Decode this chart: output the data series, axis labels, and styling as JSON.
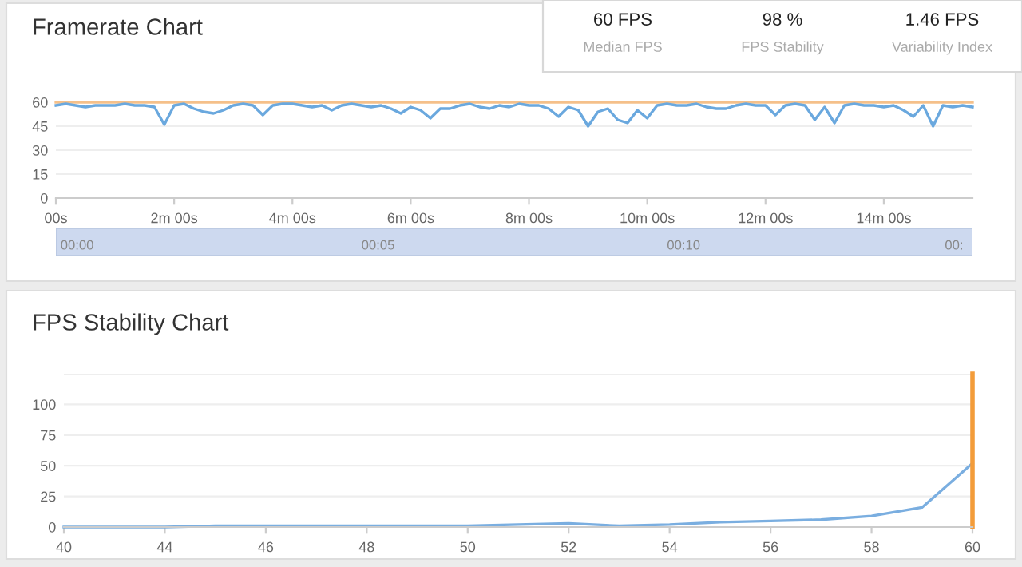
{
  "chart_data": [
    {
      "type": "line",
      "title": "Framerate Chart",
      "ylim": [
        0,
        60
      ],
      "categories": [
        "00s",
        null,
        null,
        null,
        null,
        null,
        null,
        null,
        null,
        null,
        null,
        null,
        "2m 00s",
        null,
        null,
        null,
        null,
        null,
        null,
        null,
        null,
        null,
        null,
        null,
        "4m 00s",
        null,
        null,
        null,
        null,
        null,
        null,
        null,
        null,
        null,
        null,
        null,
        "6m 00s",
        null,
        null,
        null,
        null,
        null,
        null,
        null,
        null,
        null,
        null,
        null,
        "8m 00s",
        null,
        null,
        null,
        null,
        null,
        null,
        null,
        null,
        null,
        null,
        null,
        "10m 00s",
        null,
        null,
        null,
        null,
        null,
        null,
        null,
        null,
        null,
        null,
        null,
        "12m 00s",
        null,
        null,
        null,
        null,
        null,
        null,
        null,
        null,
        null,
        null,
        null,
        "14m 00s",
        null,
        null,
        null,
        null,
        null,
        null,
        null,
        null,
        null
      ],
      "yticks": [
        0,
        15,
        30,
        45,
        60
      ],
      "grid": "y",
      "annotations": [
        "00:00",
        "00:05",
        "00:10",
        "00:"
      ],
      "series": [
        {
          "color": "#f5c08a",
          "values": [
            60,
            60,
            60,
            60,
            60,
            60,
            60,
            60,
            60,
            60,
            60,
            60,
            60,
            60,
            60,
            60,
            60,
            60,
            60,
            60,
            60,
            60,
            60,
            60,
            60,
            60,
            60,
            60,
            60,
            60,
            60,
            60,
            60,
            60,
            60,
            60,
            60,
            60,
            60,
            60,
            60,
            60,
            60,
            60,
            60,
            60,
            60,
            60,
            60,
            60,
            60,
            60,
            60,
            60,
            60,
            60,
            60,
            60,
            60,
            60,
            60,
            60,
            60,
            60,
            60,
            60,
            60,
            60,
            60,
            60,
            60,
            60,
            60,
            60,
            60,
            60,
            60,
            60,
            60,
            60,
            60,
            60,
            60,
            60,
            60,
            60,
            60,
            60,
            60,
            60,
            60,
            60,
            60,
            60
          ]
        },
        {
          "color": "#6aa8de",
          "values": [
            58,
            59,
            58,
            57,
            58,
            58,
            58,
            59,
            58,
            58,
            57,
            46,
            58,
            59,
            56,
            54,
            53,
            55,
            58,
            59,
            58,
            52,
            58,
            59,
            59,
            58,
            57,
            58,
            55,
            58,
            59,
            58,
            57,
            58,
            56,
            53,
            57,
            55,
            50,
            56,
            56,
            58,
            59,
            57,
            56,
            58,
            57,
            59,
            58,
            58,
            56,
            51,
            57,
            55,
            45,
            54,
            56,
            49,
            47,
            55,
            50,
            58,
            59,
            58,
            58,
            59,
            57,
            56,
            56,
            58,
            59,
            58,
            58,
            52,
            58,
            59,
            58,
            49,
            57,
            47,
            58,
            59,
            58,
            58,
            57,
            58,
            55,
            51,
            58,
            45,
            58,
            57,
            58,
            57
          ]
        }
      ]
    },
    {
      "type": "other",
      "categories": [
        "Median FPS",
        "FPS Stability",
        "Variability Index"
      ],
      "value_labels": [
        "60 FPS",
        "98 %",
        "1.46 FPS"
      ]
    },
    {
      "type": "line",
      "title": "FPS Stability Chart",
      "categories": [
        "40",
        null,
        "44",
        null,
        "46",
        null,
        "48",
        null,
        "50",
        null,
        "52",
        null,
        "54",
        null,
        "56",
        null,
        "58",
        null,
        "60"
      ],
      "ylim": [
        0,
        125
      ],
      "yticks": [
        0,
        25,
        50,
        75,
        100,
        {
          "value": 125,
          "label": null
        }
      ],
      "grid": "y",
      "ref_lines": [
        {
          "axis": "x",
          "value": "60",
          "color": "#f39c3a"
        }
      ],
      "series": [
        {
          "color": "#7aaee0",
          "values": [
            0,
            0,
            0,
            1,
            1,
            1,
            1,
            1,
            1,
            2,
            3,
            1,
            2,
            4,
            5,
            6,
            9,
            16,
            52
          ]
        }
      ]
    }
  ]
}
